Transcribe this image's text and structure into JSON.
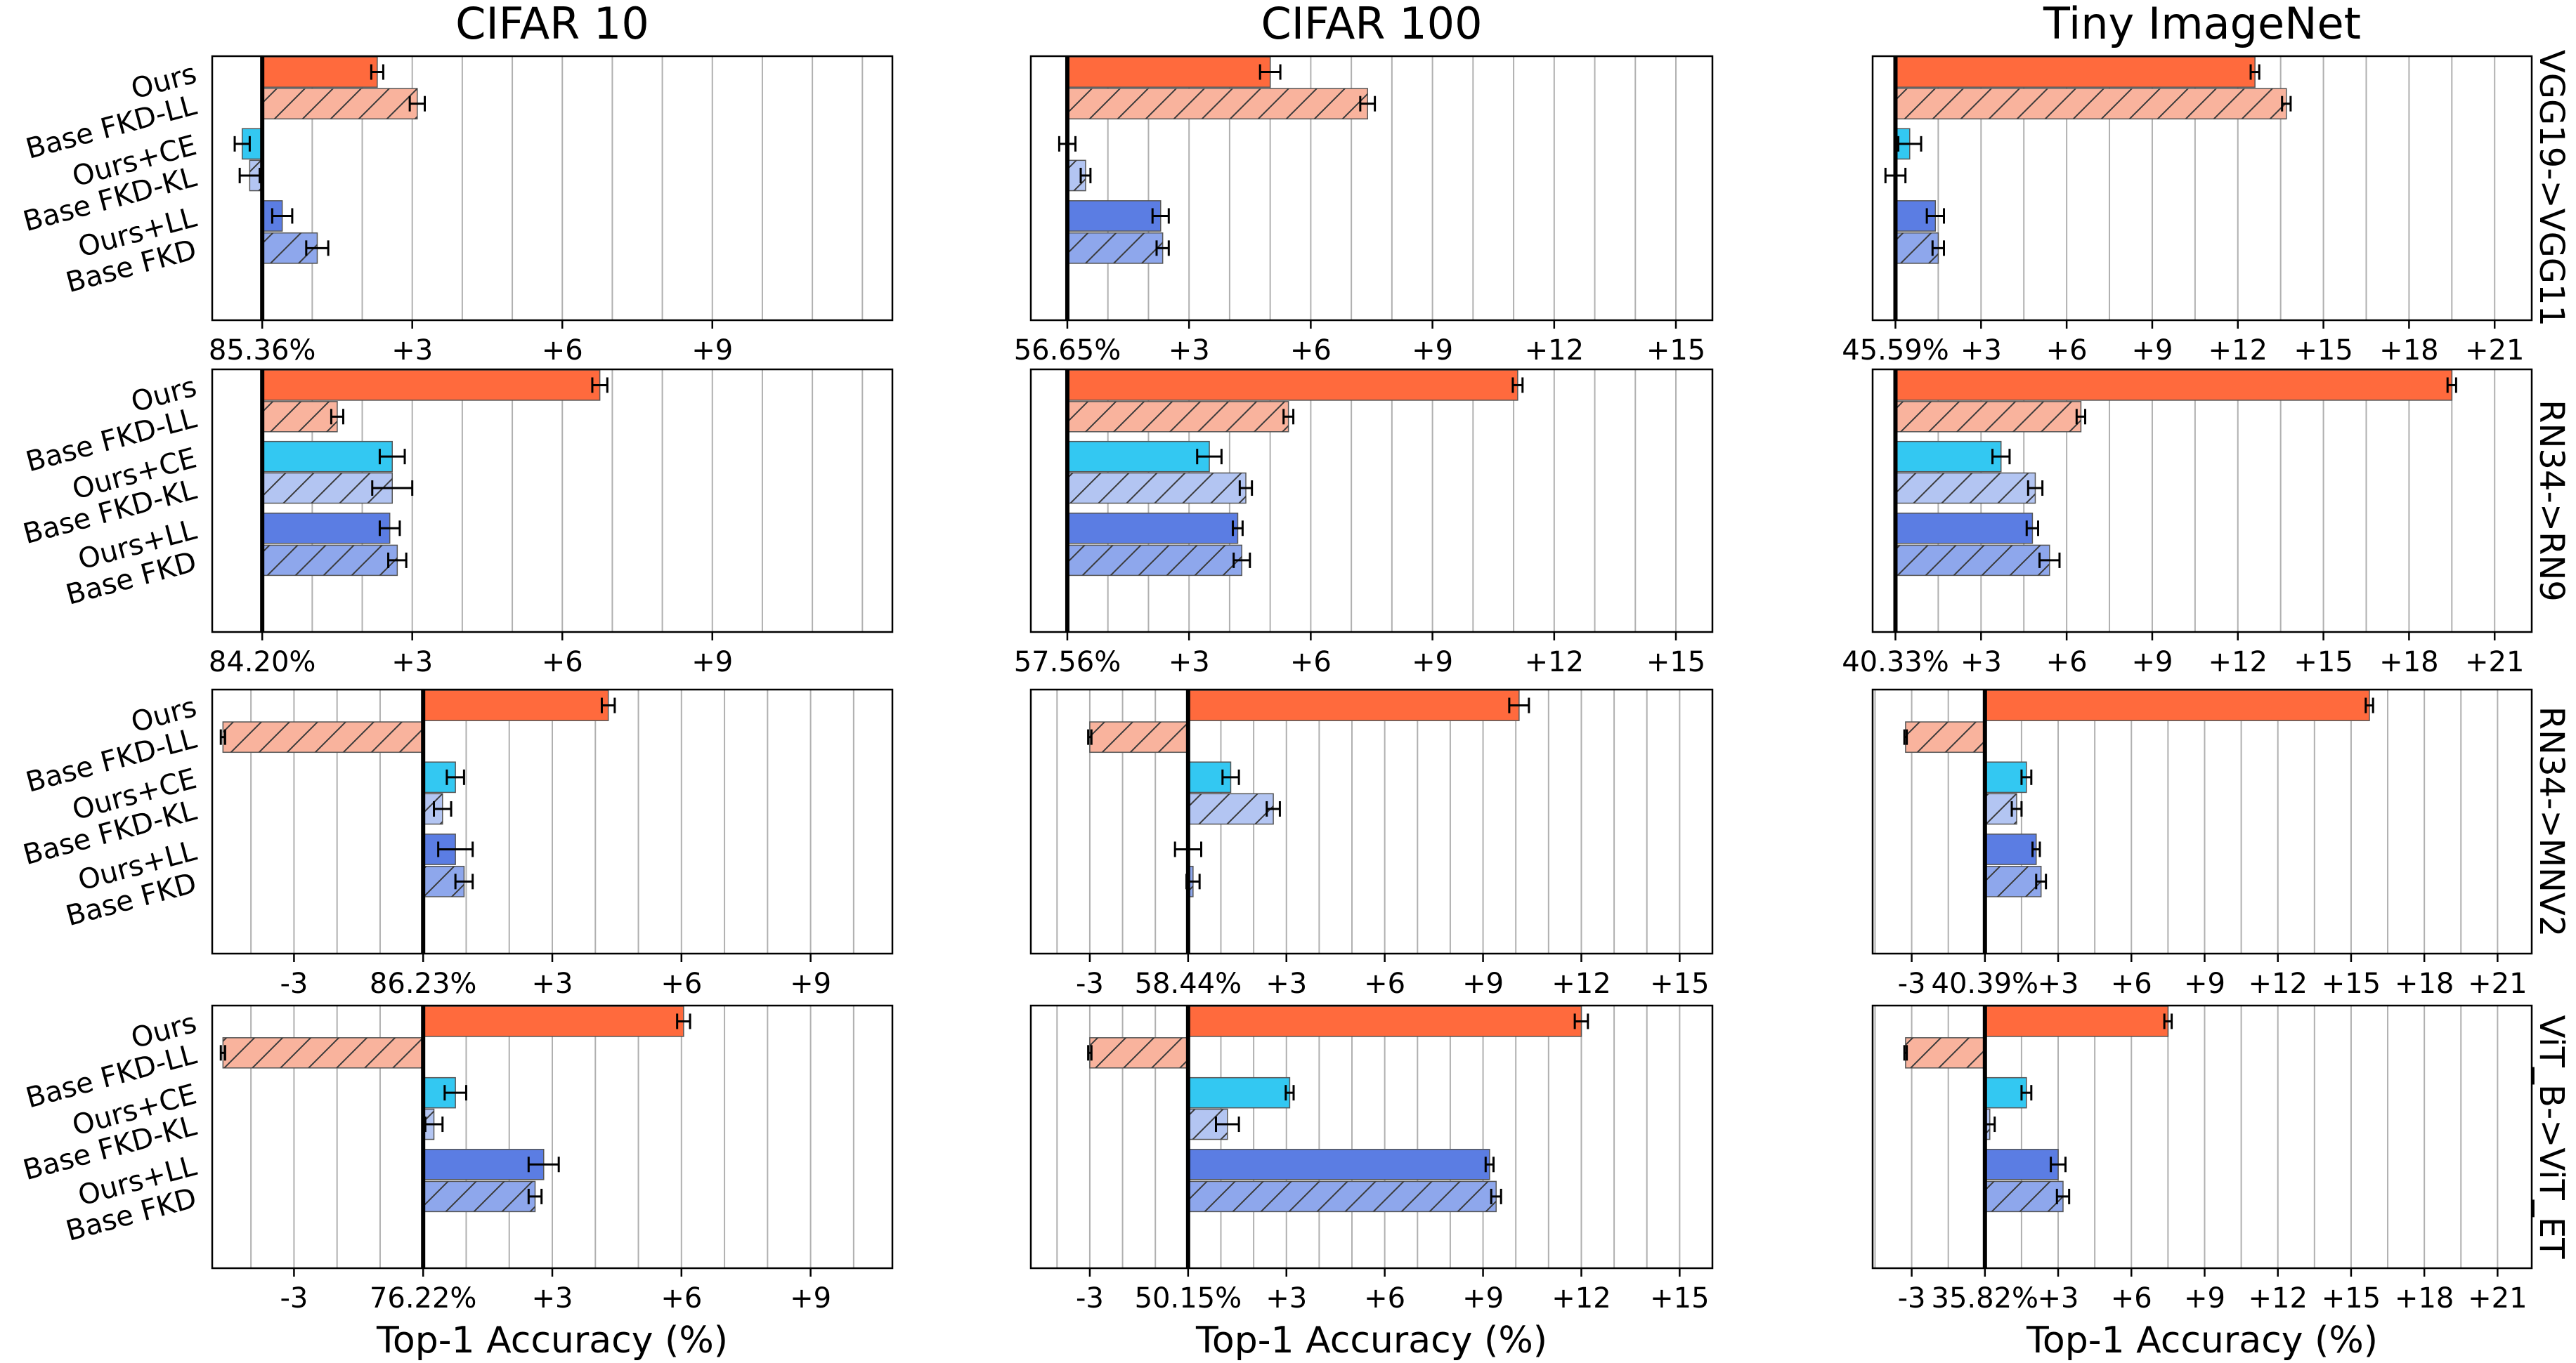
{
  "chart_data": {
    "type": "bar",
    "orientation": "horizontal",
    "columns": [
      "CIFAR 10",
      "CIFAR 100",
      "Tiny ImageNet"
    ],
    "rows": [
      "VGG19->VGG11",
      "RN34->RN9",
      "RN34->MNV2",
      "ViT_B->ViT_ET"
    ],
    "categories": [
      "Ours",
      "Base FKD-LL",
      "Ours+CE",
      "Base FKD-KL",
      "Ours+LL",
      "Base FKD"
    ],
    "xlabel": "Top-1 Accuracy (%)",
    "grid": "vertical",
    "colors": {
      "Ours": "#ff6a3d",
      "Base FKD-LL": "#f9b39d",
      "Ours+CE": "#33c8f2",
      "Base FKD-KL": "#b3c5f2",
      "Ours+LL": "#5b7de3",
      "Base FKD": "#8ea7ec"
    },
    "panels": [
      {
        "row": 0,
        "col": 0,
        "baseline": 85.36,
        "baseline_label": "85.36%",
        "xlim": [
          -1,
          12.6
        ],
        "tick_values": [
          0,
          3,
          6,
          9
        ],
        "tick_labels": [
          "85.36%",
          "+3",
          "+6",
          "+9"
        ],
        "grid_step": 1,
        "values": [
          2.3,
          3.1,
          -0.4,
          -0.25,
          0.4,
          1.1
        ],
        "errors": [
          0.12,
          0.15,
          0.15,
          0.2,
          0.2,
          0.22
        ]
      },
      {
        "row": 0,
        "col": 1,
        "baseline": 56.65,
        "baseline_label": "56.65%",
        "xlim": [
          -0.9,
          15.9
        ],
        "tick_values": [
          0,
          3,
          6,
          9,
          12,
          15
        ],
        "tick_labels": [
          "56.65%",
          "+3",
          "+6",
          "+9",
          "+12",
          "+15"
        ],
        "grid_step": 1,
        "values": [
          5.0,
          7.4,
          0.0,
          0.45,
          2.3,
          2.35
        ],
        "errors": [
          0.25,
          0.18,
          0.2,
          0.12,
          0.2,
          0.15
        ]
      },
      {
        "row": 0,
        "col": 2,
        "baseline": 45.59,
        "baseline_label": "45.59%",
        "xlim": [
          -0.8,
          22.3
        ],
        "tick_values": [
          0,
          3,
          6,
          9,
          12,
          15,
          18,
          21
        ],
        "tick_labels": [
          "45.59%",
          "+3",
          "+6",
          "+9",
          "+12",
          "+15",
          "+18",
          "+21"
        ],
        "grid_step": 1.5,
        "values": [
          12.6,
          13.7,
          0.5,
          0.0,
          1.4,
          1.5
        ],
        "errors": [
          0.15,
          0.15,
          0.4,
          0.35,
          0.3,
          0.2
        ]
      },
      {
        "row": 1,
        "col": 0,
        "baseline": 84.2,
        "baseline_label": "84.20%",
        "xlim": [
          -1,
          12.6
        ],
        "tick_values": [
          0,
          3,
          6,
          9
        ],
        "tick_labels": [
          "84.20%",
          "+3",
          "+6",
          "+9"
        ],
        "grid_step": 1,
        "values": [
          6.75,
          1.5,
          2.6,
          2.6,
          2.55,
          2.7
        ],
        "errors": [
          0.15,
          0.12,
          0.25,
          0.4,
          0.2,
          0.18
        ]
      },
      {
        "row": 1,
        "col": 1,
        "baseline": 57.56,
        "baseline_label": "57.56%",
        "xlim": [
          -0.9,
          15.9
        ],
        "tick_values": [
          0,
          3,
          6,
          9,
          12,
          15
        ],
        "tick_labels": [
          "57.56%",
          "+3",
          "+6",
          "+9",
          "+12",
          "+15"
        ],
        "grid_step": 1,
        "values": [
          11.1,
          5.45,
          3.5,
          4.4,
          4.2,
          4.3
        ],
        "errors": [
          0.12,
          0.12,
          0.3,
          0.15,
          0.12,
          0.2
        ]
      },
      {
        "row": 1,
        "col": 2,
        "baseline": 40.33,
        "baseline_label": "40.33%",
        "xlim": [
          -0.8,
          22.3
        ],
        "tick_values": [
          0,
          3,
          6,
          9,
          12,
          15,
          18,
          21
        ],
        "tick_labels": [
          "40.33%",
          "+3",
          "+6",
          "+9",
          "+12",
          "+15",
          "+18",
          "+21"
        ],
        "grid_step": 1.5,
        "values": [
          19.5,
          6.5,
          3.7,
          4.9,
          4.8,
          5.4
        ],
        "errors": [
          0.15,
          0.15,
          0.3,
          0.25,
          0.2,
          0.35
        ]
      },
      {
        "row": 2,
        "col": 0,
        "baseline": 86.23,
        "baseline_label": "86.23%",
        "xlim": [
          -4.9,
          10.9
        ],
        "tick_values": [
          -3,
          0,
          3,
          6,
          9
        ],
        "tick_labels": [
          "-3",
          "86.23%",
          "+3",
          "+6",
          "+9"
        ],
        "grid_step": 1,
        "values": [
          4.3,
          -4.65,
          0.75,
          0.45,
          0.75,
          0.95
        ],
        "errors": [
          0.15,
          0.05,
          0.2,
          0.2,
          0.4,
          0.2
        ]
      },
      {
        "row": 2,
        "col": 1,
        "baseline": 58.44,
        "baseline_label": "58.44%",
        "xlim": [
          -4.8,
          16.0
        ],
        "tick_values": [
          -3,
          0,
          3,
          6,
          9,
          12,
          15
        ],
        "tick_labels": [
          "-3",
          "58.44%",
          "+3",
          "+6",
          "+9",
          "+12",
          "+15"
        ],
        "grid_step": 1,
        "values": [
          10.1,
          -3.0,
          1.3,
          2.6,
          0.0,
          0.15
        ],
        "errors": [
          0.3,
          0.05,
          0.25,
          0.2,
          0.4,
          0.2
        ]
      },
      {
        "row": 2,
        "col": 2,
        "baseline": 40.39,
        "baseline_label": "40.39%",
        "xlim": [
          -4.6,
          22.4
        ],
        "tick_values": [
          -3,
          0,
          3,
          6,
          9,
          12,
          15,
          18,
          21
        ],
        "tick_labels": [
          "-3",
          "40.39%",
          "+3",
          "+6",
          "+9",
          "+12",
          "+15",
          "+18",
          "+21"
        ],
        "grid_step": 1.5,
        "values": [
          15.75,
          -3.25,
          1.7,
          1.3,
          2.1,
          2.3
        ],
        "errors": [
          0.15,
          0.05,
          0.2,
          0.2,
          0.15,
          0.2
        ]
      },
      {
        "row": 3,
        "col": 0,
        "baseline": 76.22,
        "baseline_label": "76.22%",
        "xlim": [
          -4.9,
          10.9
        ],
        "tick_values": [
          -3,
          0,
          3,
          6,
          9
        ],
        "tick_labels": [
          "-3",
          "76.22%",
          "+3",
          "+6",
          "+9"
        ],
        "grid_step": 1,
        "values": [
          6.05,
          -4.65,
          0.75,
          0.25,
          2.8,
          2.6
        ],
        "errors": [
          0.15,
          0.05,
          0.25,
          0.2,
          0.35,
          0.15
        ]
      },
      {
        "row": 3,
        "col": 1,
        "baseline": 50.15,
        "baseline_label": "50.15%",
        "xlim": [
          -4.8,
          16.0
        ],
        "tick_values": [
          -3,
          0,
          3,
          6,
          9,
          12,
          15
        ],
        "tick_labels": [
          "-3",
          "50.15%",
          "+3",
          "+6",
          "+9",
          "+12",
          "+15"
        ],
        "grid_step": 1,
        "values": [
          12.0,
          -3.0,
          3.1,
          1.2,
          9.2,
          9.4
        ],
        "errors": [
          0.2,
          0.05,
          0.12,
          0.35,
          0.12,
          0.15
        ]
      },
      {
        "row": 3,
        "col": 2,
        "baseline": 35.82,
        "baseline_label": "35.82%",
        "xlim": [
          -4.6,
          22.4
        ],
        "tick_values": [
          -3,
          0,
          3,
          6,
          9,
          12,
          15,
          18,
          21
        ],
        "tick_labels": [
          "-3",
          "35.82%",
          "+3",
          "+6",
          "+9",
          "+12",
          "+15",
          "+18",
          "+21"
        ],
        "grid_step": 1.5,
        "values": [
          7.5,
          -3.25,
          1.7,
          0.2,
          3.0,
          3.2
        ],
        "errors": [
          0.15,
          0.05,
          0.2,
          0.2,
          0.3,
          0.25
        ]
      }
    ]
  }
}
